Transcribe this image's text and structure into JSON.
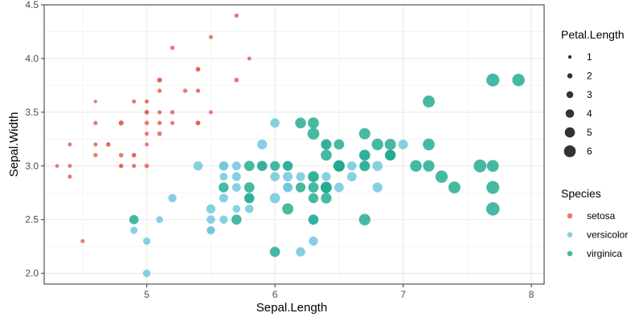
{
  "chart_data": {
    "type": "scatter",
    "xlabel": "Sepal.Length",
    "ylabel": "Sepal.Width",
    "xlim": [
      4.2,
      8.1
    ],
    "ylim": [
      1.9,
      4.5
    ],
    "x_ticks": [
      5,
      6,
      7,
      8
    ],
    "y_ticks": [
      2.0,
      2.5,
      3.0,
      3.5,
      4.0,
      4.5
    ],
    "x_tick_labels": [
      "5",
      "6",
      "7",
      "8"
    ],
    "y_tick_labels": [
      "2.0",
      "2.5",
      "3.0",
      "3.5",
      "4.0",
      "4.5"
    ],
    "grid": true,
    "legend_placement": "right",
    "size_legend": {
      "title": "Petal.Length",
      "values": [
        1,
        2,
        3,
        4,
        5,
        6
      ],
      "labels": [
        "1",
        "2",
        "3",
        "4",
        "5",
        "6"
      ],
      "color": "#333333"
    },
    "color_legend": {
      "title": "Species",
      "entries": [
        "setosa",
        "versicolor",
        "virginica"
      ]
    },
    "series": [
      {
        "name": "setosa",
        "color": "#E0604F",
        "points": [
          [
            5.7,
            4.4,
            1.5
          ],
          [
            5.5,
            4.2,
            1.4
          ],
          [
            5.2,
            4.1,
            1.5
          ],
          [
            5.8,
            4.0,
            1.2
          ],
          [
            5.4,
            3.9,
            1.7
          ],
          [
            5.4,
            3.9,
            1.3
          ],
          [
            5.1,
            3.8,
            1.9
          ],
          [
            5.1,
            3.8,
            1.6
          ],
          [
            5.7,
            3.8,
            1.7
          ],
          [
            5.3,
            3.7,
            1.5
          ],
          [
            5.1,
            3.7,
            1.5
          ],
          [
            5.4,
            3.7,
            1.5
          ],
          [
            4.9,
            3.6,
            1.4
          ],
          [
            5.0,
            3.6,
            1.4
          ],
          [
            4.6,
            3.6,
            1.0
          ],
          [
            5.0,
            3.5,
            1.3
          ],
          [
            5.1,
            3.5,
            1.4
          ],
          [
            5.2,
            3.5,
            1.5
          ],
          [
            5.5,
            3.5,
            1.3
          ],
          [
            5.0,
            3.5,
            1.6
          ],
          [
            4.8,
            3.4,
            1.6
          ],
          [
            4.8,
            3.4,
            1.9
          ],
          [
            5.0,
            3.4,
            1.5
          ],
          [
            5.1,
            3.4,
            1.5
          ],
          [
            5.4,
            3.4,
            1.7
          ],
          [
            4.6,
            3.4,
            1.4
          ],
          [
            5.2,
            3.4,
            1.4
          ],
          [
            5.4,
            3.4,
            1.5
          ],
          [
            5.0,
            3.3,
            1.4
          ],
          [
            5.1,
            3.3,
            1.7
          ],
          [
            4.6,
            3.2,
            1.4
          ],
          [
            4.4,
            3.2,
            1.3
          ],
          [
            4.7,
            3.2,
            1.6
          ],
          [
            4.7,
            3.2,
            1.3
          ],
          [
            5.0,
            3.2,
            1.2
          ],
          [
            4.6,
            3.1,
            1.5
          ],
          [
            4.9,
            3.1,
            1.5
          ],
          [
            4.8,
            3.1,
            1.6
          ],
          [
            4.9,
            3.1,
            1.5
          ],
          [
            4.3,
            3.0,
            1.1
          ],
          [
            4.4,
            3.0,
            1.3
          ],
          [
            4.8,
            3.0,
            1.4
          ],
          [
            4.8,
            3.0,
            1.4
          ],
          [
            4.9,
            3.0,
            1.4
          ],
          [
            5.0,
            3.0,
            1.6
          ],
          [
            4.4,
            2.9,
            1.4
          ],
          [
            4.5,
            2.3,
            1.3
          ]
        ]
      },
      {
        "name": "versicolor",
        "color": "#6CC6DD",
        "points": [
          [
            6.0,
            3.4,
            4.5
          ],
          [
            5.9,
            3.2,
            4.8
          ],
          [
            7.0,
            3.2,
            4.7
          ],
          [
            6.4,
            3.2,
            4.5
          ],
          [
            5.4,
            3.0,
            4.5
          ],
          [
            5.6,
            3.0,
            4.5
          ],
          [
            5.6,
            3.0,
            4.1
          ],
          [
            5.7,
            3.0,
            4.2
          ],
          [
            5.9,
            3.0,
            4.2
          ],
          [
            6.1,
            3.0,
            4.6
          ],
          [
            6.6,
            3.0,
            4.4
          ],
          [
            6.8,
            3.0,
            5.0
          ],
          [
            6.7,
            3.1,
            4.7
          ],
          [
            6.9,
            3.1,
            4.9
          ],
          [
            6.7,
            3.0,
            5.0
          ],
          [
            6.3,
            2.9,
            4.3
          ],
          [
            6.1,
            2.9,
            4.7
          ],
          [
            6.0,
            2.9,
            4.5
          ],
          [
            6.2,
            2.9,
            4.3
          ],
          [
            6.4,
            2.9,
            4.3
          ],
          [
            5.6,
            2.9,
            3.6
          ],
          [
            5.7,
            2.9,
            4.2
          ],
          [
            6.6,
            2.9,
            4.6
          ],
          [
            6.1,
            2.8,
            4.0
          ],
          [
            6.5,
            2.8,
            4.6
          ],
          [
            5.7,
            2.8,
            4.1
          ],
          [
            6.8,
            2.8,
            4.8
          ],
          [
            6.7,
            3.1,
            4.4
          ],
          [
            5.6,
            2.7,
            4.2
          ],
          [
            6.0,
            2.7,
            5.1
          ],
          [
            5.8,
            2.7,
            4.1
          ],
          [
            5.8,
            2.7,
            3.9
          ],
          [
            5.2,
            2.7,
            3.9
          ],
          [
            5.5,
            2.6,
            4.4
          ],
          [
            5.7,
            2.6,
            3.5
          ],
          [
            5.8,
            2.6,
            4.0
          ],
          [
            5.5,
            2.5,
            4.0
          ],
          [
            5.1,
            2.5,
            3.0
          ],
          [
            4.9,
            2.4,
            3.3
          ],
          [
            5.5,
            2.4,
            3.8
          ],
          [
            5.5,
            2.4,
            3.7
          ],
          [
            5.0,
            2.3,
            3.3
          ],
          [
            6.3,
            2.3,
            4.4
          ],
          [
            6.2,
            2.2,
            4.5
          ],
          [
            5.0,
            2.0,
            3.5
          ],
          [
            5.6,
            2.5,
            3.9
          ],
          [
            6.1,
            2.8,
            4.7
          ],
          [
            6.3,
            2.5,
            4.9
          ]
        ]
      },
      {
        "name": "virginica",
        "color": "#1FA98F",
        "points": [
          [
            7.7,
            3.8,
            6.7
          ],
          [
            7.9,
            3.8,
            6.4
          ],
          [
            7.2,
            3.6,
            6.1
          ],
          [
            6.2,
            3.4,
            5.4
          ],
          [
            6.3,
            3.4,
            5.6
          ],
          [
            6.7,
            3.3,
            5.7
          ],
          [
            6.3,
            3.3,
            6.0
          ],
          [
            6.4,
            3.2,
            5.3
          ],
          [
            6.9,
            3.2,
            5.7
          ],
          [
            6.5,
            3.2,
            5.1
          ],
          [
            7.2,
            3.2,
            6.0
          ],
          [
            6.8,
            3.2,
            5.9
          ],
          [
            6.4,
            3.1,
            5.5
          ],
          [
            6.7,
            3.1,
            5.6
          ],
          [
            6.9,
            3.1,
            5.4
          ],
          [
            6.9,
            3.1,
            5.1
          ],
          [
            5.8,
            3.0,
            5.1
          ],
          [
            5.9,
            3.0,
            5.1
          ],
          [
            6.0,
            3.0,
            4.8
          ],
          [
            6.1,
            3.0,
            4.9
          ],
          [
            6.5,
            3.0,
            5.8
          ],
          [
            6.5,
            3.0,
            5.5
          ],
          [
            6.5,
            3.0,
            5.2
          ],
          [
            6.7,
            3.0,
            5.2
          ],
          [
            7.1,
            3.0,
            5.9
          ],
          [
            7.2,
            3.0,
            5.8
          ],
          [
            7.6,
            3.0,
            6.6
          ],
          [
            7.7,
            3.0,
            6.1
          ],
          [
            6.3,
            2.9,
            5.6
          ],
          [
            7.3,
            2.9,
            6.3
          ],
          [
            6.4,
            2.8,
            5.6
          ],
          [
            6.2,
            2.8,
            4.8
          ],
          [
            6.3,
            2.8,
            5.1
          ],
          [
            6.4,
            2.8,
            5.6
          ],
          [
            5.6,
            2.8,
            4.9
          ],
          [
            5.8,
            2.8,
            5.1
          ],
          [
            7.7,
            2.8,
            6.7
          ],
          [
            7.4,
            2.8,
            6.1
          ],
          [
            5.8,
            2.7,
            5.1
          ],
          [
            6.3,
            2.7,
            4.9
          ],
          [
            6.4,
            2.7,
            5.3
          ],
          [
            7.7,
            2.6,
            6.9
          ],
          [
            6.1,
            2.6,
            5.6
          ],
          [
            5.7,
            2.5,
            5.0
          ],
          [
            6.3,
            2.5,
            5.0
          ],
          [
            6.7,
            2.5,
            5.8
          ],
          [
            4.9,
            2.5,
            4.5
          ],
          [
            6.0,
            2.2,
            5.0
          ]
        ]
      }
    ]
  }
}
